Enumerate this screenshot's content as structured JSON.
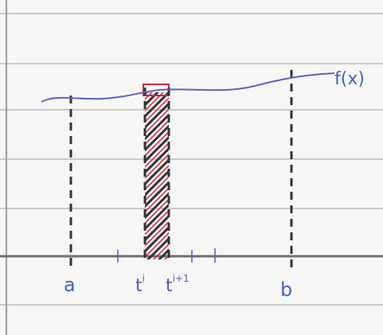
{
  "function": "f(x)",
  "points": [
    {
      "label": "a"
    },
    {
      "base": "t",
      "sup": "i"
    },
    {
      "base": "t",
      "sup": "i+1"
    },
    {
      "label": "b"
    }
  ]
}
